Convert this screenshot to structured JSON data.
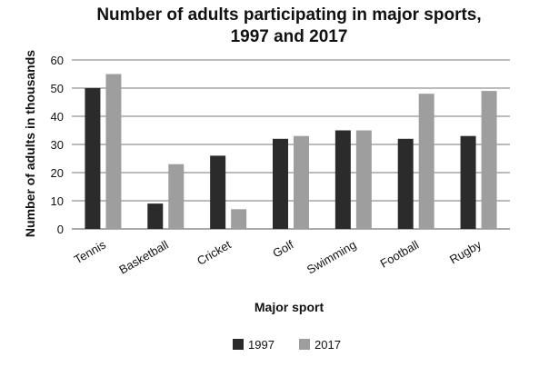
{
  "chart_data": {
    "type": "bar",
    "title_line1": "Number of adults participating in major sports,",
    "title_line2": "1997 and 2017",
    "xlabel": "Major sport",
    "ylabel": "Number of adults in thousands",
    "ylim": [
      0,
      60
    ],
    "yticks": [
      0,
      10,
      20,
      30,
      40,
      50,
      60
    ],
    "grid": true,
    "legend_position": "bottom",
    "categories": [
      "Tennis",
      "Basketball",
      "Cricket",
      "Golf",
      "Swimming",
      "Football",
      "Rugby"
    ],
    "series": [
      {
        "name": "1997",
        "color": "#2b2b2b",
        "values": [
          50,
          9,
          26,
          32,
          35,
          32,
          33
        ]
      },
      {
        "name": "2017",
        "color": "#9e9e9e",
        "values": [
          55,
          23,
          7,
          33,
          35,
          48,
          49
        ]
      }
    ]
  }
}
